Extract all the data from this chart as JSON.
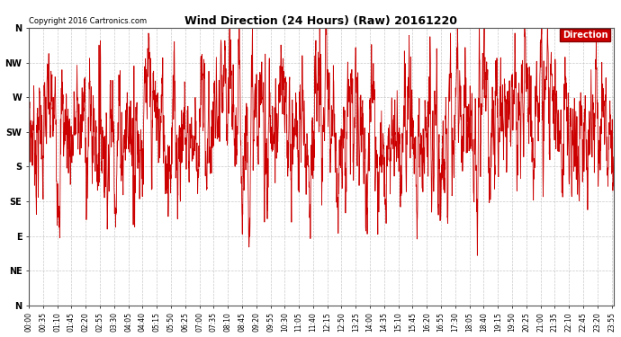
{
  "title": "Wind Direction (24 Hours) (Raw) 20161220",
  "copyright": "Copyright 2016 Cartronics.com",
  "legend_label": "Direction",
  "legend_bg": "#cc0000",
  "legend_fg": "#ffffff",
  "line_color": "#cc0000",
  "background_color": "#ffffff",
  "grid_color": "#bbbbbb",
  "ytick_labels": [
    "N",
    "NW",
    "W",
    "SW",
    "S",
    "SE",
    "E",
    "NE",
    "N"
  ],
  "ytick_values": [
    360,
    315,
    270,
    225,
    180,
    135,
    90,
    45,
    0
  ],
  "ylim": [
    0,
    360
  ],
  "xtick_labels": [
    "00:00",
    "00:35",
    "01:10",
    "01:45",
    "02:20",
    "02:55",
    "03:30",
    "04:05",
    "04:40",
    "05:15",
    "05:50",
    "06:25",
    "07:00",
    "07:35",
    "08:10",
    "08:45",
    "09:20",
    "09:55",
    "10:30",
    "11:05",
    "11:40",
    "12:15",
    "12:50",
    "13:25",
    "14:00",
    "14:35",
    "15:10",
    "15:45",
    "16:20",
    "16:55",
    "17:30",
    "18:05",
    "18:40",
    "19:15",
    "19:50",
    "20:25",
    "21:00",
    "21:35",
    "22:10",
    "22:45",
    "23:20",
    "23:55"
  ],
  "num_points": 2880,
  "mean_direction": 232,
  "noise_std": 28,
  "seed": 7,
  "figwidth": 6.9,
  "figheight": 3.75,
  "dpi": 100
}
